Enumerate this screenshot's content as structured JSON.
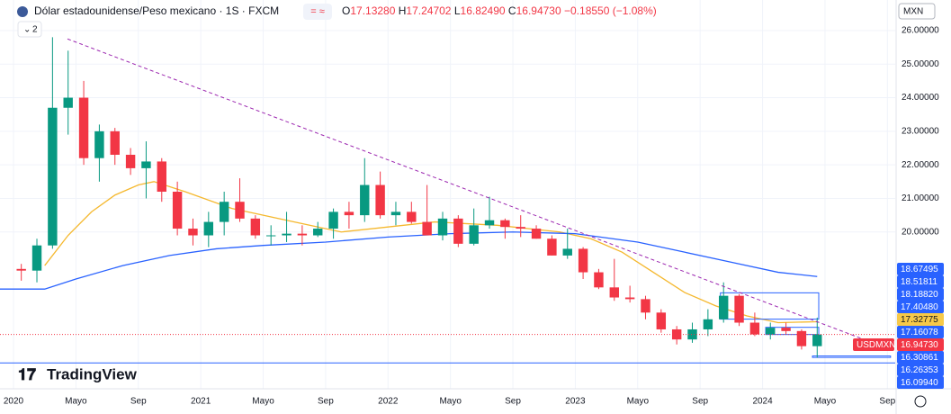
{
  "header": {
    "title": "Dólar estadounidense/Peso mexicano · 1S · FXCM",
    "ohlc": [
      {
        "label": "O",
        "value": "17.13280"
      },
      {
        "label": "H",
        "value": "17.24702"
      },
      {
        "label": "L",
        "value": "16.82490"
      },
      {
        "label": "C",
        "value": "16.94730"
      }
    ],
    "change": "−0.18550 (−1.08%)",
    "indicators_count": "2",
    "currency": "MXN",
    "logo": "TradingView"
  },
  "chart_data": {
    "type": "candlestick",
    "xlim": [
      -0.865,
      56.5
    ],
    "ylim": [
      15.33,
      26.32
    ],
    "grid": true,
    "xticks": [
      {
        "value": 0,
        "label": "2020"
      },
      {
        "value": 4,
        "label": "Mayo"
      },
      {
        "value": 8,
        "label": "Sep"
      },
      {
        "value": 12,
        "label": "2021"
      },
      {
        "value": 16,
        "label": "Mayo"
      },
      {
        "value": 20,
        "label": "Sep"
      },
      {
        "value": 24,
        "label": "2022"
      },
      {
        "value": 28,
        "label": "Mayo"
      },
      {
        "value": 32,
        "label": "Sep"
      },
      {
        "value": 36,
        "label": "2023"
      },
      {
        "value": 40,
        "label": "Mayo"
      },
      {
        "value": 44,
        "label": "Sep"
      },
      {
        "value": 48,
        "label": "2024"
      },
      {
        "value": 52,
        "label": "Mayo"
      },
      {
        "value": 56,
        "label": "Sep"
      }
    ],
    "yticks": [
      {
        "value": 20,
        "label": "20.00000"
      },
      {
        "value": 21,
        "label": "21.00000"
      },
      {
        "value": 22,
        "label": "22.00000"
      },
      {
        "value": 23,
        "label": "23.00000"
      },
      {
        "value": 24,
        "label": "24.00000"
      },
      {
        "value": 25,
        "label": "25.00000"
      },
      {
        "value": 26,
        "label": "26.00000"
      }
    ],
    "series": [
      {
        "name": "USDMXN",
        "up_color": "#089981",
        "down_color": "#f23645",
        "x": [
          0.5,
          1.5,
          2.5,
          3.5,
          4.5,
          5.5,
          6.5,
          7.5,
          8.5,
          9.5,
          10.5,
          11.5,
          12.5,
          13.5,
          14.5,
          15.5,
          16.5,
          17.5,
          18.5,
          19.5,
          20.5,
          21.5,
          22.5,
          23.5,
          24.5,
          25.5,
          26.5,
          27.5,
          28.5,
          29.5,
          30.5,
          31.5,
          32.5,
          33.5,
          34.5,
          35.5,
          36.5,
          37.5,
          38.5,
          39.5,
          40.5,
          41.5,
          42.5,
          43.5,
          44.5,
          45.5,
          46.5,
          47.5,
          48.5,
          49.5,
          50.5,
          51.5
        ],
        "open": [
          18.9,
          18.85,
          19.6,
          23.7,
          24.0,
          22.2,
          23.0,
          22.3,
          21.9,
          22.1,
          21.2,
          20.1,
          19.9,
          20.3,
          20.9,
          20.4,
          19.9,
          19.9,
          19.95,
          19.9,
          20.1,
          20.6,
          20.5,
          21.4,
          20.5,
          20.6,
          20.3,
          19.9,
          20.4,
          19.65,
          20.2,
          20.35,
          20.15,
          20.1,
          19.8,
          19.3,
          19.5,
          18.8,
          18.35,
          18.05,
          18.0,
          17.6,
          17.1,
          16.8,
          17.1,
          17.4,
          18.1,
          17.3,
          16.95,
          17.15,
          17.05,
          16.6
        ],
        "high": [
          19.05,
          19.8,
          25.8,
          25.4,
          24.5,
          23.2,
          23.1,
          22.5,
          22.7,
          22.2,
          21.5,
          20.4,
          20.6,
          21.2,
          21.6,
          20.5,
          20.2,
          20.6,
          20.2,
          20.3,
          20.7,
          20.9,
          22.2,
          21.8,
          20.9,
          20.9,
          21.4,
          20.6,
          20.5,
          20.7,
          21.05,
          20.4,
          20.5,
          20.2,
          19.9,
          20.1,
          19.55,
          18.9,
          19.2,
          18.4,
          18.1,
          17.7,
          17.2,
          17.3,
          17.7,
          18.5,
          18.15,
          17.6,
          17.3,
          17.3,
          17.1,
          17.45
        ],
        "low": [
          18.55,
          18.5,
          19.5,
          22.9,
          22.0,
          21.5,
          22.0,
          21.7,
          21.0,
          20.9,
          19.9,
          19.6,
          19.55,
          19.9,
          20.3,
          19.8,
          19.6,
          19.7,
          19.6,
          19.85,
          19.8,
          20.1,
          20.3,
          20.4,
          20.2,
          20.25,
          19.9,
          19.75,
          19.55,
          19.6,
          20.1,
          19.8,
          19.85,
          19.8,
          19.3,
          19.2,
          18.6,
          18.3,
          17.95,
          17.9,
          17.4,
          17.0,
          16.65,
          16.7,
          16.9,
          17.3,
          17.2,
          16.9,
          16.8,
          16.95,
          16.5,
          16.26
        ],
        "close": [
          18.85,
          19.6,
          23.7,
          24.0,
          22.2,
          23.0,
          22.3,
          21.9,
          22.1,
          21.2,
          20.1,
          19.9,
          20.3,
          20.9,
          20.4,
          19.9,
          19.9,
          19.95,
          19.9,
          20.1,
          20.6,
          20.5,
          21.4,
          20.5,
          20.6,
          20.3,
          19.9,
          20.4,
          19.65,
          20.2,
          20.35,
          20.15,
          20.1,
          19.8,
          19.3,
          19.5,
          18.8,
          18.35,
          18.05,
          18.0,
          17.6,
          17.1,
          16.8,
          17.1,
          17.4,
          18.1,
          17.3,
          16.95,
          17.15,
          17.05,
          16.6,
          16.9473
        ]
      }
    ],
    "lines": [
      {
        "color": "#f5b82e",
        "x": [
          2,
          3.5,
          5,
          6.5,
          8,
          9,
          11,
          14,
          18,
          21,
          23,
          27,
          31,
          35,
          37,
          39,
          41,
          43,
          45,
          47,
          49,
          51.5
        ],
        "values": [
          19.0,
          19.9,
          20.6,
          21.1,
          21.4,
          21.5,
          21.2,
          20.7,
          20.3,
          20.0,
          20.1,
          20.3,
          20.2,
          20.0,
          19.8,
          19.4,
          18.8,
          18.2,
          17.8,
          17.5,
          17.3,
          17.32775
        ]
      },
      {
        "color": "#2962ff",
        "x": [
          -0.865,
          2,
          4,
          7,
          10,
          13,
          16,
          20,
          24,
          28,
          32,
          36,
          40,
          43,
          46,
          49,
          51.5
        ],
        "values": [
          18.3,
          18.3,
          18.6,
          19.0,
          19.3,
          19.5,
          19.6,
          19.7,
          19.85,
          19.95,
          20.0,
          19.95,
          19.7,
          19.4,
          19.1,
          18.8,
          18.67495
        ]
      }
    ],
    "trendline": {
      "color": "#9c27b0",
      "x": [
        3.46,
        55.07
      ],
      "y": [
        25.75,
        16.7
      ]
    },
    "hlines": [
      {
        "color": "#2962ff",
        "value": 16.0994
      }
    ],
    "boxes": [
      {
        "color": "#2962ff",
        "x": [
          45.3,
          51.6
        ],
        "y": [
          17.4048,
          18.1882
        ]
      },
      {
        "color": "#2962ff",
        "x": [
          48.2,
          51.6
        ],
        "y": [
          16.9473,
          17.16078
        ]
      },
      {
        "color": "#2962ff",
        "x": [
          51.2,
          56.2
        ],
        "y": [
          16.26353,
          16.30861
        ]
      }
    ],
    "price_labels": [
      {
        "value": 18.67495,
        "label": "18.67495",
        "color": "#2962ff"
      },
      {
        "value": 18.51811,
        "label": "18.51811",
        "color": "#2962ff"
      },
      {
        "value": 18.1882,
        "label": "18.18820",
        "color": "#2962ff"
      },
      {
        "value": 17.4048,
        "label": "17.40480",
        "color": "#2962ff"
      },
      {
        "value": 17.32775,
        "label": "17.32775",
        "color": "#f7c948"
      },
      {
        "value": 17.16078,
        "label": "17.16078",
        "color": "#2962ff"
      },
      {
        "value": 16.9473,
        "label": "16.94730",
        "color": "#f23645"
      },
      {
        "value": 16.30861,
        "label": "16.30861",
        "color": "#2962ff"
      },
      {
        "value": 16.26353,
        "label": "16.26353",
        "color": "#2962ff"
      },
      {
        "value": 16.0994,
        "label": "16.09940",
        "color": "#2962ff"
      }
    ]
  }
}
